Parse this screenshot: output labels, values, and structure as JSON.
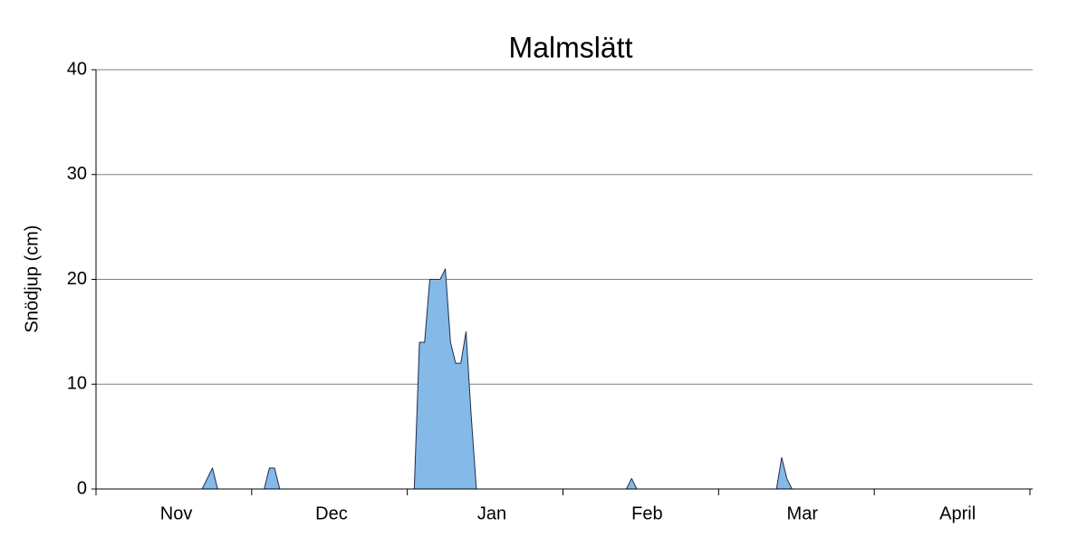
{
  "chart_data": {
    "type": "area",
    "title": "Malmslätt",
    "y_label": "Snödjup (cm)",
    "categories": [
      null,
      null,
      null,
      null,
      null,
      null,
      null,
      null,
      null,
      null,
      null,
      null,
      null,
      null,
      null,
      "Nov",
      null,
      null,
      null,
      null,
      null,
      null,
      null,
      null,
      null,
      null,
      null,
      null,
      null,
      null,
      null,
      null,
      null,
      null,
      null,
      null,
      null,
      null,
      null,
      null,
      null,
      null,
      null,
      null,
      null,
      "Dec",
      null,
      null,
      null,
      null,
      null,
      null,
      null,
      null,
      null,
      null,
      null,
      null,
      null,
      null,
      null,
      null,
      null,
      null,
      null,
      null,
      null,
      null,
      null,
      null,
      null,
      null,
      null,
      null,
      null,
      null,
      "Jan",
      null,
      null,
      null,
      null,
      null,
      null,
      null,
      null,
      null,
      null,
      null,
      null,
      null,
      null,
      null,
      null,
      null,
      null,
      null,
      null,
      null,
      null,
      null,
      null,
      null,
      null,
      null,
      null,
      null,
      "Feb",
      null,
      null,
      null,
      null,
      null,
      null,
      null,
      null,
      null,
      null,
      null,
      null,
      null,
      null,
      null,
      null,
      null,
      null,
      null,
      null,
      null,
      null,
      null,
      null,
      null,
      null,
      null,
      null,
      null,
      "Mar",
      null,
      null,
      null,
      null,
      null,
      null,
      null,
      null,
      null,
      null,
      null,
      null,
      null,
      null,
      null,
      null,
      null,
      null,
      null,
      null,
      null,
      null,
      null,
      null,
      null,
      null,
      null,
      null,
      null,
      "April",
      null,
      null,
      null,
      null,
      null,
      null,
      null,
      null,
      null,
      null,
      null,
      null,
      null,
      null
    ],
    "values": [
      0,
      0,
      0,
      0,
      0,
      0,
      0,
      0,
      0,
      0,
      0,
      0,
      0,
      0,
      0,
      0,
      0,
      0,
      0,
      0,
      0,
      1,
      2,
      0,
      0,
      0,
      0,
      0,
      0,
      0,
      0,
      0,
      0,
      2,
      2,
      0,
      0,
      0,
      0,
      0,
      0,
      0,
      0,
      0,
      0,
      0,
      0,
      0,
      0,
      0,
      0,
      0,
      0,
      0,
      0,
      0,
      0,
      0,
      0,
      0,
      0,
      0,
      14,
      14,
      20,
      20,
      20,
      21,
      14,
      12,
      12,
      15,
      7,
      0,
      0,
      0,
      0,
      0,
      0,
      0,
      0,
      0,
      0,
      0,
      0,
      0,
      0,
      0,
      0,
      0,
      0,
      0,
      0,
      0,
      0,
      0,
      0,
      0,
      0,
      0,
      0,
      0,
      0,
      1,
      0,
      0,
      0,
      0,
      0,
      0,
      0,
      0,
      0,
      0,
      0,
      0,
      0,
      0,
      0,
      0,
      0,
      0,
      0,
      0,
      0,
      0,
      0,
      0,
      0,
      0,
      0,
      0,
      3,
      1,
      0,
      0,
      0,
      0,
      0,
      0,
      0,
      0,
      0,
      0,
      0,
      0,
      0,
      0,
      0,
      0,
      0,
      0,
      0,
      0,
      0,
      0,
      0,
      0,
      0,
      0,
      0,
      0,
      0,
      0,
      0,
      0,
      0,
      0,
      0,
      0,
      0,
      0,
      0,
      0,
      0,
      0,
      0,
      0,
      0,
      0,
      0
    ],
    "color": "#85b9e8",
    "ylim": [
      0,
      40
    ],
    "yticks": [
      0,
      10,
      20,
      30,
      40
    ],
    "grid": true
  }
}
